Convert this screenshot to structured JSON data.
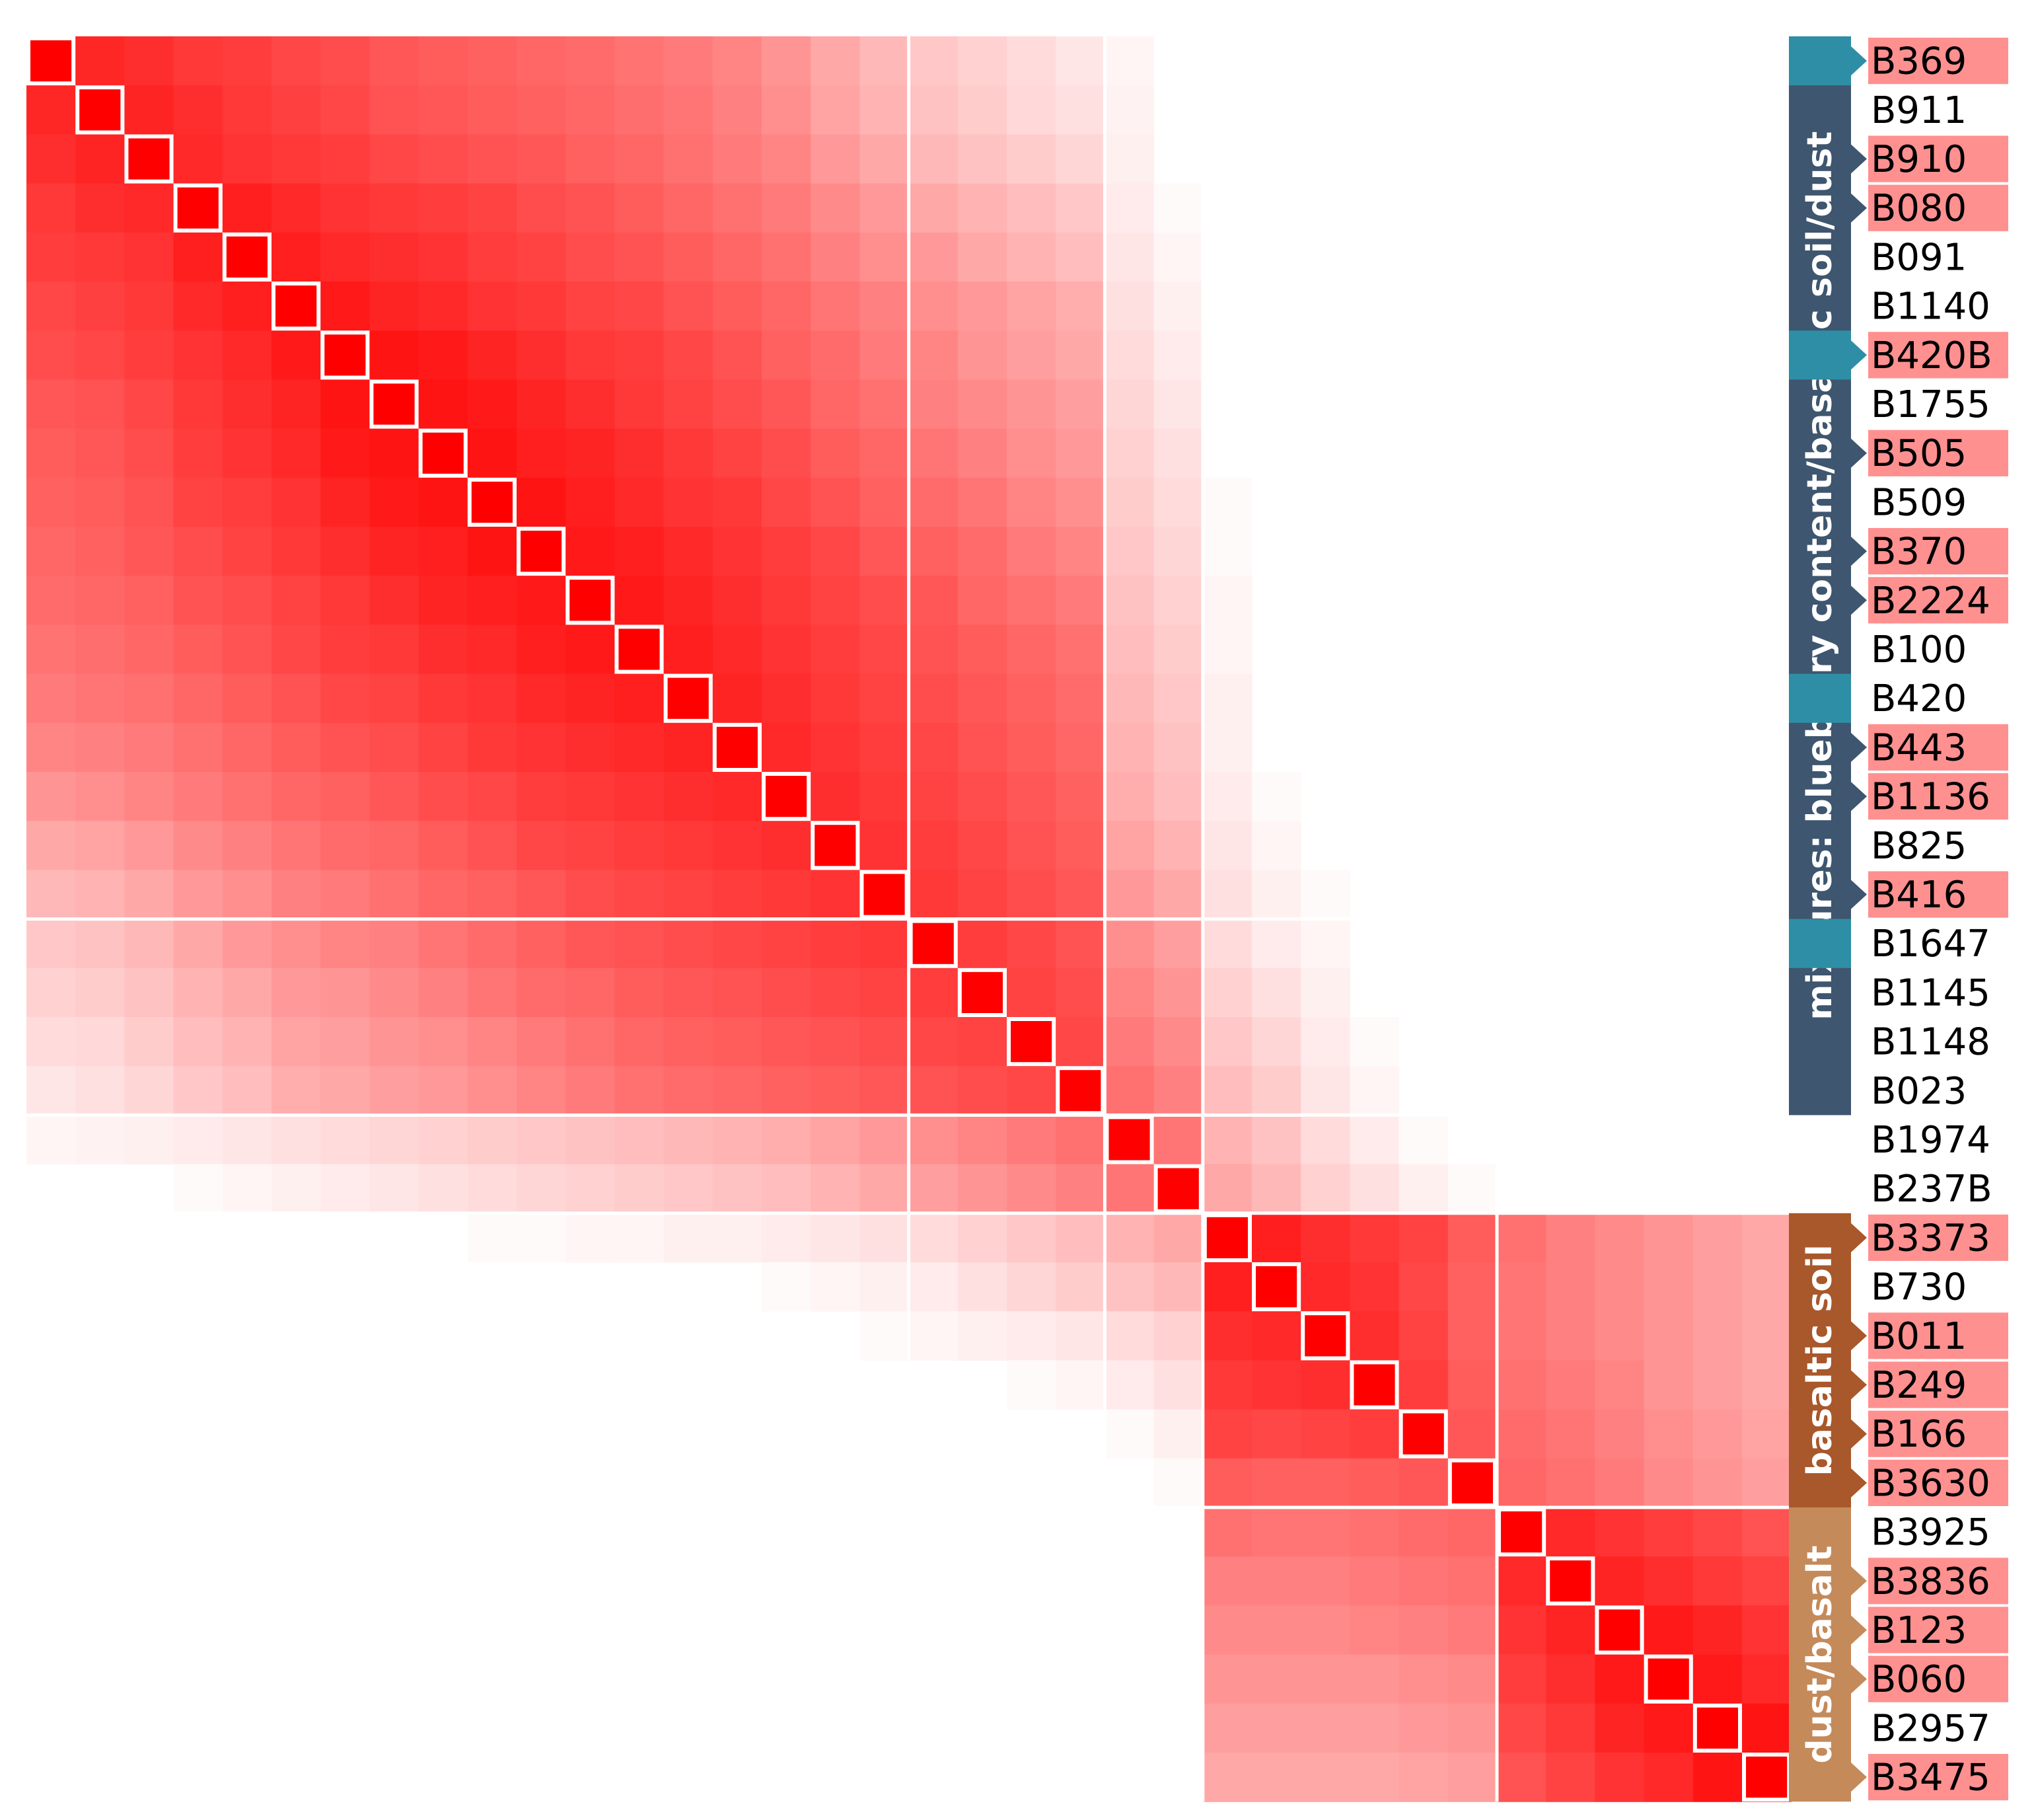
{
  "chart_data": {
    "type": "heatmap",
    "title": "",
    "xlabel": "",
    "ylabel": "",
    "colorscale": {
      "low": "#ffffff",
      "high": "#ff0000"
    },
    "value_range": [
      0,
      1
    ],
    "labels": [
      "B369",
      "B911",
      "B910",
      "B080",
      "B091",
      "B1140",
      "B420B",
      "B1755",
      "B505",
      "B509",
      "B370",
      "B2224",
      "B100",
      "B420",
      "B443",
      "B1136",
      "B825",
      "B416",
      "B1647",
      "B1145",
      "B1148",
      "B023",
      "B1974",
      "B237B",
      "B3373",
      "B730",
      "B011",
      "B249",
      "B166",
      "B3630",
      "B3925",
      "B3836",
      "B123",
      "B060",
      "B2957",
      "B3475"
    ],
    "highlighted_labels": [
      "B369",
      "B910",
      "B080",
      "B420B",
      "B505",
      "B370",
      "B2224",
      "B443",
      "B1136",
      "B416",
      "B3373",
      "B011",
      "B249",
      "B166",
      "B3630",
      "B3836",
      "B123",
      "B060",
      "B3475"
    ],
    "groups": [
      {
        "label": "mixtures: blueberry content/basaltic soil/dust",
        "start": 0,
        "end": 21,
        "color": "#3e566f"
      },
      {
        "label": "basaltic soil",
        "start": 24,
        "end": 29,
        "color": "#a8582a"
      },
      {
        "label": "dust/basalt",
        "start": 30,
        "end": 35,
        "color": "#c48a5a"
      }
    ],
    "group_accent_color": "#2e8ea5",
    "accent_markers": [
      0,
      6,
      13,
      18
    ],
    "tab_markers": [
      0,
      2,
      3,
      6,
      8,
      10,
      11,
      14,
      15,
      17,
      24,
      26,
      27,
      28,
      29,
      31,
      32,
      33,
      35
    ],
    "block_boundaries": [
      18,
      22,
      24,
      30
    ],
    "diagonal_value": 1.0,
    "matrix_upper_rows": [
      {
        "row": 0,
        "values": [
          0.85,
          0.82,
          0.78,
          0.76,
          0.72,
          0.7,
          0.66,
          0.64,
          0.62,
          0.6,
          0.58,
          0.55,
          0.52,
          0.48,
          0.42,
          0.34,
          0.28,
          0.22,
          0.18,
          0.14,
          0.1,
          0.04,
          0,
          0,
          0,
          0,
          0,
          0,
          0,
          0,
          0,
          0,
          0,
          0,
          0
        ]
      },
      {
        "row": 1,
        "values": [
          0.86,
          0.82,
          0.78,
          0.75,
          0.72,
          0.68,
          0.66,
          0.64,
          0.62,
          0.6,
          0.57,
          0.54,
          0.5,
          0.44,
          0.36,
          0.3,
          0.24,
          0.2,
          0.15,
          0.12,
          0.05,
          0,
          0,
          0,
          0,
          0,
          0,
          0,
          0,
          0,
          0,
          0,
          0,
          0
        ]
      },
      {
        "row": 2,
        "values": [
          0.84,
          0.8,
          0.78,
          0.76,
          0.72,
          0.7,
          0.68,
          0.66,
          0.62,
          0.6,
          0.56,
          0.52,
          0.48,
          0.4,
          0.34,
          0.28,
          0.24,
          0.2,
          0.16,
          0.06,
          0,
          0,
          0,
          0,
          0,
          0,
          0,
          0,
          0,
          0,
          0,
          0,
          0
        ]
      },
      {
        "row": 3,
        "values": [
          0.88,
          0.84,
          0.8,
          0.78,
          0.76,
          0.74,
          0.7,
          0.68,
          0.64,
          0.6,
          0.56,
          0.52,
          0.46,
          0.4,
          0.34,
          0.3,
          0.26,
          0.22,
          0.08,
          0.02,
          0,
          0,
          0,
          0,
          0,
          0,
          0,
          0,
          0,
          0,
          0,
          0
        ]
      },
      {
        "row": 4,
        "values": [
          0.88,
          0.84,
          0.82,
          0.8,
          0.76,
          0.74,
          0.7,
          0.68,
          0.64,
          0.6,
          0.56,
          0.5,
          0.44,
          0.4,
          0.34,
          0.3,
          0.26,
          0.1,
          0.04,
          0,
          0,
          0,
          0,
          0,
          0,
          0,
          0,
          0,
          0,
          0,
          0
        ]
      },
      {
        "row": 5,
        "values": [
          0.9,
          0.86,
          0.84,
          0.8,
          0.78,
          0.74,
          0.72,
          0.68,
          0.64,
          0.6,
          0.54,
          0.5,
          0.44,
          0.4,
          0.36,
          0.32,
          0.12,
          0.06,
          0,
          0,
          0,
          0,
          0,
          0,
          0,
          0,
          0,
          0,
          0,
          0
        ]
      },
      {
        "row": 6,
        "values": [
          0.92,
          0.9,
          0.86,
          0.82,
          0.78,
          0.76,
          0.72,
          0.68,
          0.62,
          0.58,
          0.52,
          0.48,
          0.42,
          0.38,
          0.34,
          0.14,
          0.08,
          0,
          0,
          0,
          0,
          0,
          0,
          0,
          0,
          0,
          0,
          0,
          0
        ]
      },
      {
        "row": 7,
        "values": [
          0.92,
          0.9,
          0.86,
          0.82,
          0.78,
          0.74,
          0.7,
          0.66,
          0.6,
          0.56,
          0.5,
          0.46,
          0.42,
          0.38,
          0.16,
          0.1,
          0,
          0,
          0,
          0,
          0,
          0,
          0,
          0,
          0,
          0,
          0,
          0
        ]
      },
      {
        "row": 8,
        "values": [
          0.92,
          0.88,
          0.86,
          0.82,
          0.78,
          0.74,
          0.7,
          0.64,
          0.6,
          0.54,
          0.5,
          0.44,
          0.4,
          0.18,
          0.12,
          0,
          0,
          0,
          0,
          0,
          0,
          0,
          0,
          0,
          0,
          0,
          0
        ]
      },
      {
        "row": 9,
        "values": [
          0.92,
          0.88,
          0.84,
          0.8,
          0.78,
          0.72,
          0.68,
          0.62,
          0.58,
          0.54,
          0.48,
          0.44,
          0.2,
          0.14,
          0.02,
          0,
          0,
          0,
          0,
          0,
          0,
          0,
          0,
          0,
          0,
          0
        ]
      },
      {
        "row": 10,
        "values": [
          0.9,
          0.88,
          0.84,
          0.8,
          0.76,
          0.72,
          0.66,
          0.62,
          0.58,
          0.52,
          0.48,
          0.22,
          0.16,
          0.02,
          0,
          0,
          0,
          0,
          0,
          0,
          0,
          0,
          0,
          0,
          0
        ]
      },
      {
        "row": 11,
        "values": [
          0.9,
          0.86,
          0.82,
          0.78,
          0.74,
          0.7,
          0.66,
          0.6,
          0.56,
          0.52,
          0.24,
          0.18,
          0.04,
          0,
          0,
          0,
          0,
          0,
          0,
          0,
          0,
          0,
          0,
          0
        ]
      },
      {
        "row": 12,
        "values": [
          0.88,
          0.84,
          0.8,
          0.76,
          0.72,
          0.68,
          0.64,
          0.6,
          0.56,
          0.26,
          0.2,
          0.04,
          0,
          0,
          0,
          0,
          0,
          0,
          0,
          0,
          0,
          0,
          0
        ]
      },
      {
        "row": 13,
        "values": [
          0.86,
          0.82,
          0.78,
          0.74,
          0.7,
          0.66,
          0.62,
          0.58,
          0.28,
          0.22,
          0.06,
          0,
          0,
          0,
          0,
          0,
          0,
          0,
          0,
          0,
          0,
          0
        ]
      },
      {
        "row": 14,
        "values": [
          0.84,
          0.8,
          0.76,
          0.72,
          0.68,
          0.64,
          0.6,
          0.3,
          0.24,
          0.06,
          0,
          0,
          0,
          0,
          0,
          0,
          0,
          0,
          0,
          0,
          0
        ]
      },
      {
        "row": 15,
        "values": [
          0.82,
          0.78,
          0.74,
          0.7,
          0.66,
          0.62,
          0.32,
          0.26,
          0.08,
          0.02,
          0,
          0,
          0,
          0,
          0,
          0,
          0,
          0,
          0,
          0
        ]
      },
      {
        "row": 16,
        "values": [
          0.8,
          0.76,
          0.72,
          0.68,
          0.64,
          0.36,
          0.3,
          0.1,
          0.04,
          0,
          0,
          0,
          0,
          0,
          0,
          0,
          0,
          0,
          0
        ]
      },
      {
        "row": 17,
        "values": [
          0.78,
          0.74,
          0.7,
          0.66,
          0.4,
          0.34,
          0.12,
          0.06,
          0.02,
          0,
          0,
          0,
          0,
          0,
          0,
          0,
          0,
          0
        ]
      },
      {
        "row": 18,
        "values": [
          0.76,
          0.72,
          0.68,
          0.44,
          0.38,
          0.14,
          0.08,
          0.04,
          0,
          0,
          0,
          0,
          0,
          0,
          0,
          0,
          0
        ]
      },
      {
        "row": 19,
        "values": [
          0.74,
          0.7,
          0.48,
          0.42,
          0.18,
          0.12,
          0.06,
          0,
          0,
          0,
          0,
          0,
          0,
          0,
          0,
          0
        ]
      },
      {
        "row": 20,
        "values": [
          0.72,
          0.52,
          0.46,
          0.22,
          0.16,
          0.08,
          0.02,
          0,
          0,
          0,
          0,
          0,
          0,
          0,
          0
        ]
      },
      {
        "row": 21,
        "values": [
          0.56,
          0.5,
          0.26,
          0.2,
          0.1,
          0.04,
          0,
          0,
          0,
          0,
          0,
          0,
          0,
          0
        ]
      },
      {
        "row": 22,
        "values": [
          0.54,
          0.3,
          0.24,
          0.14,
          0.08,
          0.02,
          0,
          0,
          0,
          0,
          0,
          0,
          0
        ]
      },
      {
        "row": 23,
        "values": [
          0.34,
          0.28,
          0.18,
          0.12,
          0.06,
          0.02,
          0,
          0,
          0,
          0,
          0,
          0
        ]
      },
      {
        "row": 24,
        "values": [
          0.88,
          0.82,
          0.78,
          0.74,
          0.64,
          0.56,
          0.5,
          0.46,
          0.42,
          0.38,
          0.34
        ]
      },
      {
        "row": 25,
        "values": [
          0.84,
          0.8,
          0.72,
          0.62,
          0.54,
          0.5,
          0.46,
          0.42,
          0.38,
          0.34
        ]
      },
      {
        "row": 26,
        "values": [
          0.82,
          0.74,
          0.62,
          0.54,
          0.5,
          0.46,
          0.42,
          0.38,
          0.34
        ]
      },
      {
        "row": 27,
        "values": [
          0.76,
          0.64,
          0.56,
          0.52,
          0.48,
          0.42,
          0.38,
          0.34
        ]
      },
      {
        "row": 28,
        "values": [
          0.66,
          0.58,
          0.54,
          0.5,
          0.44,
          0.4,
          0.36
        ]
      },
      {
        "row": 29,
        "values": [
          0.6,
          0.56,
          0.52,
          0.46,
          0.42,
          0.38
        ]
      },
      {
        "row": 30,
        "values": [
          0.84,
          0.8,
          0.76,
          0.72,
          0.68
        ]
      },
      {
        "row": 31,
        "values": [
          0.86,
          0.82,
          0.78,
          0.74
        ]
      },
      {
        "row": 32,
        "values": [
          0.9,
          0.86,
          0.8
        ]
      },
      {
        "row": 33,
        "values": [
          0.9,
          0.84
        ]
      },
      {
        "row": 34,
        "values": [
          0.92
        ]
      }
    ]
  }
}
